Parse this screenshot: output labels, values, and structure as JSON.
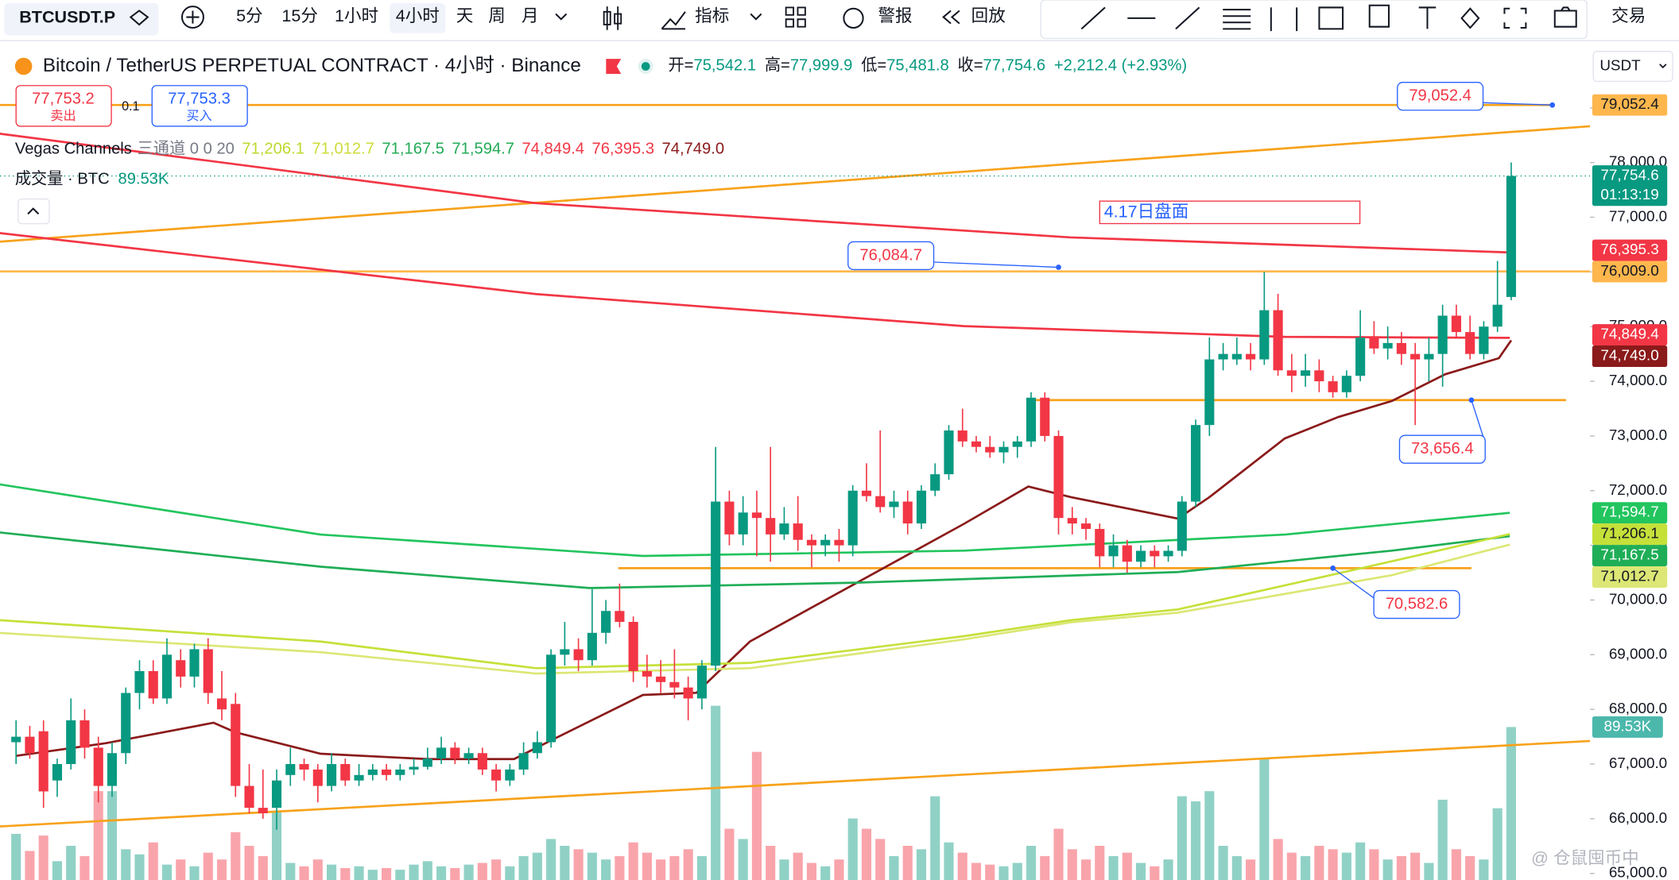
{
  "toolbar": {
    "symbol": "BTCUSDT.P",
    "intervals": [
      "5分",
      "15分",
      "1小时",
      "4小时",
      "天",
      "周",
      "月"
    ],
    "indicators": "指标",
    "alert": "警报",
    "replay": "回放",
    "trade": "交易"
  },
  "header": {
    "title": "Bitcoin / TetherUS PERPETUAL CONTRACT · 4小时 · Binance",
    "ohlc": [
      {
        "label": "开=",
        "value": "75,542.1"
      },
      {
        "label": "高=",
        "value": "77,999.9"
      },
      {
        "label": "低=",
        "value": "75,481.8"
      },
      {
        "label": "收=",
        "value": "77,754.6"
      }
    ],
    "change": "+2,212.4 (+2.93%)"
  },
  "order": {
    "sell_price": "77,753.2",
    "sell_label": "卖出",
    "spread": "0.1",
    "buy_price": "77,753.3",
    "buy_label": "买入"
  },
  "indicator": {
    "name": "Vegas Channels",
    "params": "三通道 0 0 20",
    "values": [
      {
        "text": "71,206.1",
        "color": "#c0d82e"
      },
      {
        "text": "71,012.7",
        "color": "#cddc39"
      },
      {
        "text": "71,167.5",
        "color": "#22ab56"
      },
      {
        "text": "71,594.7",
        "color": "#22ab56"
      },
      {
        "text": "74,849.4",
        "color": "#f23645"
      },
      {
        "text": "76,395.3",
        "color": "#f23645"
      },
      {
        "text": "74,749.0",
        "color": "#8b1a1a"
      }
    ]
  },
  "volume_legend": {
    "name": "成交量 · BTC",
    "value": "89.53K"
  },
  "currency": "USDT",
  "annotation": "4.17日盘面",
  "watermark": "@ 仓鼠囤币中",
  "chart_data": {
    "type": "candlestick",
    "up_color": "#089981",
    "down_color": "#f23645",
    "grid": false,
    "ylim": [
      64880,
      80190
    ],
    "yticks": [
      {
        "value": 65000,
        "label": "65,000.0"
      },
      {
        "value": 66000,
        "label": "66,000.0"
      },
      {
        "value": 67000,
        "label": "67,000.0"
      },
      {
        "value": 68000,
        "label": "68,000.0"
      },
      {
        "value": 69000,
        "label": "69,000.0"
      },
      {
        "value": 70000,
        "label": "70,000.0"
      },
      {
        "value": 71000,
        "label": "71,000.0"
      },
      {
        "value": 72000,
        "label": "72,000.0"
      },
      {
        "value": 73000,
        "label": "73,000.0"
      },
      {
        "value": 74000,
        "label": "74,000.0"
      },
      {
        "value": 75000,
        "label": "75,000.0"
      },
      {
        "value": 76000,
        "label": "76,000.0"
      },
      {
        "value": 77000,
        "label": "77,000.0"
      },
      {
        "value": 78000,
        "label": "78,000.0"
      },
      {
        "value": 79000,
        "label": "79,000.0"
      }
    ],
    "y2lim": [
      0,
      490
    ],
    "candles": [
      [
        67400,
        67800,
        67000,
        67500
      ],
      [
        67500,
        67700,
        67100,
        67200
      ],
      [
        67600,
        67800,
        66200,
        66500
      ],
      [
        66700,
        67100,
        66400,
        67000
      ],
      [
        67000,
        68200,
        66900,
        67800
      ],
      [
        67800,
        68000,
        67100,
        67300
      ],
      [
        67300,
        67500,
        66300,
        66600
      ],
      [
        66600,
        67400,
        66400,
        67200
      ],
      [
        67200,
        68400,
        67000,
        68300
      ],
      [
        68300,
        68900,
        68000,
        68700
      ],
      [
        68700,
        68900,
        68100,
        68200
      ],
      [
        68200,
        69300,
        68100,
        69000
      ],
      [
        68900,
        69100,
        68400,
        68600
      ],
      [
        68600,
        69200,
        68400,
        69100
      ],
      [
        69100,
        69300,
        68100,
        68300
      ],
      [
        68200,
        68700,
        67800,
        68000
      ],
      [
        68100,
        68300,
        66400,
        66600
      ],
      [
        66600,
        67000,
        66100,
        66200
      ],
      [
        66200,
        66900,
        66000,
        66100
      ],
      [
        66200,
        66900,
        65800,
        66700
      ],
      [
        66800,
        67300,
        66600,
        67000
      ],
      [
        67000,
        67100,
        66700,
        66900
      ],
      [
        66900,
        67000,
        66300,
        66600
      ],
      [
        66600,
        67200,
        66500,
        67000
      ],
      [
        67000,
        67100,
        66600,
        66700
      ],
      [
        66700,
        67000,
        66600,
        66800
      ],
      [
        66800,
        67000,
        66700,
        66900
      ],
      [
        66900,
        67000,
        66700,
        66800
      ],
      [
        66800,
        67000,
        66700,
        66900
      ],
      [
        66900,
        67100,
        66800,
        66950
      ],
      [
        66950,
        67300,
        66900,
        67100
      ],
      [
        67100,
        67500,
        67000,
        67300
      ],
      [
        67300,
        67400,
        67000,
        67100
      ],
      [
        67100,
        67300,
        67000,
        67200
      ],
      [
        67200,
        67300,
        66800,
        66900
      ],
      [
        66900,
        67000,
        66500,
        66700
      ],
      [
        66700,
        67000,
        66600,
        66900
      ],
      [
        66900,
        67400,
        66800,
        67200
      ],
      [
        67200,
        67600,
        67100,
        67400
      ],
      [
        67400,
        69100,
        67300,
        69000
      ],
      [
        69000,
        69600,
        68800,
        69100
      ],
      [
        69100,
        69300,
        68700,
        68900
      ],
      [
        68900,
        70200,
        68800,
        69400
      ],
      [
        69400,
        70000,
        69200,
        69800
      ],
      [
        69800,
        70300,
        69500,
        69600
      ],
      [
        69600,
        69700,
        68500,
        68700
      ],
      [
        68700,
        69000,
        68400,
        68600
      ],
      [
        68600,
        68900,
        68300,
        68500
      ],
      [
        68500,
        69100,
        68200,
        68400
      ],
      [
        68400,
        68600,
        67800,
        68200
      ],
      [
        68200,
        68900,
        68000,
        68800
      ],
      [
        68800,
        72800,
        68700,
        71800
      ],
      [
        71800,
        72000,
        71000,
        71200
      ],
      [
        71200,
        71900,
        71000,
        71600
      ],
      [
        71600,
        72000,
        70800,
        71500
      ],
      [
        71500,
        72800,
        70700,
        71200
      ],
      [
        71200,
        71700,
        71100,
        71400
      ],
      [
        71400,
        71900,
        70900,
        71100
      ],
      [
        71100,
        71200,
        70600,
        71000
      ],
      [
        71000,
        71200,
        70800,
        71100
      ],
      [
        71100,
        71300,
        70700,
        71000
      ],
      [
        71000,
        72100,
        70800,
        72000
      ],
      [
        72000,
        72500,
        71800,
        71900
      ],
      [
        71900,
        73100,
        71600,
        71700
      ],
      [
        71700,
        72000,
        71500,
        71800
      ],
      [
        71800,
        72000,
        71200,
        71400
      ],
      [
        71400,
        72100,
        71300,
        72000
      ],
      [
        72000,
        72500,
        71900,
        72300
      ],
      [
        72300,
        73200,
        72200,
        73100
      ],
      [
        73100,
        73500,
        72800,
        72900
      ],
      [
        72900,
        73000,
        72700,
        72800
      ],
      [
        72800,
        73000,
        72600,
        72700
      ],
      [
        72700,
        72900,
        72500,
        72800
      ],
      [
        72800,
        73000,
        72600,
        72900
      ],
      [
        72900,
        73800,
        72800,
        73700
      ],
      [
        73700,
        73800,
        72900,
        73000
      ],
      [
        73000,
        73100,
        71200,
        71500
      ],
      [
        71500,
        71700,
        71200,
        71400
      ],
      [
        71400,
        71500,
        71100,
        71300
      ],
      [
        71300,
        71400,
        70600,
        70800
      ],
      [
        70800,
        71200,
        70600,
        71000
      ],
      [
        71000,
        71100,
        70500,
        70700
      ],
      [
        70700,
        71000,
        70600,
        70900
      ],
      [
        70900,
        71000,
        70600,
        70800
      ],
      [
        70800,
        71000,
        70700,
        70900
      ],
      [
        70900,
        71900,
        70800,
        71800
      ],
      [
        71800,
        73300,
        71700,
        73200
      ],
      [
        73200,
        74800,
        73000,
        74400
      ],
      [
        74400,
        74700,
        74200,
        74500
      ],
      [
        74400,
        74800,
        74300,
        74500
      ],
      [
        74500,
        74700,
        74200,
        74400
      ],
      [
        74400,
        76000,
        74300,
        75300
      ],
      [
        75300,
        75600,
        74100,
        74200
      ],
      [
        74200,
        74500,
        73800,
        74100
      ],
      [
        74100,
        74500,
        73900,
        74200
      ],
      [
        74200,
        74400,
        73800,
        74000
      ],
      [
        74000,
        74100,
        73700,
        73800
      ],
      [
        73800,
        74200,
        73700,
        74100
      ],
      [
        74100,
        75300,
        74000,
        74800
      ],
      [
        74800,
        75100,
        74500,
        74600
      ],
      [
        74600,
        75000,
        74400,
        74700
      ],
      [
        74700,
        74900,
        74300,
        74500
      ],
      [
        74500,
        74700,
        73200,
        74400
      ],
      [
        74400,
        74800,
        74000,
        74500
      ],
      [
        74500,
        75400,
        73900,
        75200
      ],
      [
        75200,
        75400,
        74800,
        74900
      ],
      [
        74900,
        75200,
        74400,
        74500
      ],
      [
        74500,
        75100,
        74400,
        75000
      ],
      [
        75000,
        76200,
        74900,
        75400
      ],
      [
        75542.1,
        77999.9,
        75481.8,
        77754.6
      ]
    ],
    "volumes": [
      27,
      17,
      26,
      11,
      20,
      14,
      52,
      52,
      18,
      15,
      22,
      9,
      12,
      8,
      16,
      12,
      28,
      20,
      14,
      40,
      10,
      8,
      12,
      9,
      7,
      8,
      6,
      7,
      6,
      9,
      11,
      8,
      7,
      9,
      10,
      12,
      8,
      14,
      16,
      24,
      20,
      18,
      16,
      12,
      14,
      22,
      16,
      12,
      14,
      18,
      14,
      102,
      30,
      24,
      75,
      20,
      12,
      16,
      10,
      8,
      12,
      36,
      30,
      24,
      14,
      20,
      18,
      49,
      22,
      16,
      10,
      9,
      8,
      10,
      20,
      14,
      30,
      18,
      12,
      20,
      14,
      16,
      10,
      8,
      12,
      49,
      46,
      52,
      20,
      14,
      12,
      71,
      24,
      16,
      14,
      20,
      18,
      16,
      22,
      18,
      12,
      14,
      16,
      10,
      47,
      18,
      14,
      12,
      42,
      89.53
    ],
    "lines": [
      {
        "color": "#f23645",
        "x": [
          -1.2,
          37.9,
          76.9,
          108.7
        ],
        "values": [
          78528,
          77257,
          76631,
          76358
        ]
      },
      {
        "color": "#f23645",
        "x": [
          -1.2,
          37.9,
          69.1,
          92.5,
          108.9
        ],
        "values": [
          76710,
          75595,
          75009,
          74813,
          74794
        ]
      },
      {
        "color": "#8b1a1a",
        "x": [
          0,
          6.6,
          14.4,
          16,
          22.2,
          30,
          36.3,
          39.4,
          45.7,
          49.6,
          53.5,
          61.3,
          69.1,
          73.8,
          76.9,
          80.8,
          84.7,
          87,
          92.5,
          96.4,
          100.3,
          104.2,
          108.1,
          109
        ],
        "values": [
          67150,
          67384,
          67756,
          67580,
          67189,
          67091,
          67091,
          67482,
          68264,
          68303,
          69241,
          70317,
          71392,
          72076,
          71881,
          71685,
          71490,
          71881,
          72956,
          73347,
          73640,
          74129,
          74422,
          74749
        ]
      },
      {
        "color": "#22c55e",
        "x": [
          -1.2,
          22.2,
          45.7,
          69.1,
          92.5,
          108.9
        ],
        "values": [
          72115,
          71197,
          70806,
          70903,
          71197,
          71595
        ]
      },
      {
        "color": "#1fae57",
        "x": [
          -1.2,
          22.2,
          41.8,
          61.3,
          84.7,
          100.3,
          108.9
        ],
        "values": [
          71236,
          70610,
          70219,
          70317,
          70512,
          70903,
          71168
        ]
      },
      {
        "color": "#c6e03a",
        "x": [
          -1.2,
          22.2,
          37.9,
          53.5,
          69.1,
          76.9,
          84.7,
          100.3,
          108.9
        ],
        "values": [
          69632,
          69241,
          68753,
          68850,
          69339,
          69632,
          69828,
          70708,
          71206
        ]
      },
      {
        "color": "#dce775",
        "x": [
          -1.2,
          22.2,
          37.9,
          53.5,
          69.1,
          76.9,
          84.7,
          100.3,
          108.9
        ],
        "values": [
          69398,
          69046,
          68655,
          68753,
          69280,
          69593,
          69769,
          70454,
          71013
        ]
      }
    ],
    "drawings": [
      {
        "color": "#f7a21b",
        "x": [
          -1.2,
          112
        ],
        "values": [
          79052.4,
          79052.4
        ]
      },
      {
        "color": "#f7a21b",
        "x": [
          -1.2,
          114.8
        ],
        "values": [
          76553,
          78665
        ]
      },
      {
        "color": "#ffb74d",
        "x": [
          -1.2,
          114.8
        ],
        "values": [
          76009.0,
          76009.0
        ]
      },
      {
        "color": "#f7a21b",
        "x": [
          74.2,
          113
        ],
        "values": [
          73656.4,
          73656.4
        ]
      },
      {
        "color": "#f7a21b",
        "x": [
          43.9,
          106.1
        ],
        "values": [
          70582.6,
          70582.6
        ]
      },
      {
        "color": "#f7a21b",
        "x": [
          -1.2,
          114.8
        ],
        "values": [
          65859,
          67423
        ]
      }
    ],
    "callouts": [
      {
        "x": 112,
        "value": 79052.4,
        "label": "79,052.4"
      },
      {
        "x": 76,
        "value": 76084.7,
        "label": "76,084.7"
      },
      {
        "x": 106.1,
        "value": 73656.4,
        "label": "73,656.4"
      },
      {
        "x": 96,
        "value": 70582.6,
        "label": "70,582.6"
      }
    ],
    "price_tags": [
      {
        "value": 79052.4,
        "label": "79,052.4",
        "color": "#ffb74d",
        "label_color": "#131722"
      },
      {
        "value": 77754.6,
        "label": "77,754.6",
        "color": "#089981",
        "label_color": "#ffffff",
        "countdown": "01:13:19"
      },
      {
        "value": 76395.3,
        "label": "76,395.3",
        "color": "#f23645",
        "label_color": "#ffffff"
      },
      {
        "value": 76009.0,
        "label": "76,009.0",
        "color": "#ffb74d",
        "label_color": "#131722"
      },
      {
        "value": 74849.4,
        "label": "74,849.4",
        "color": "#f23645",
        "label_color": "#ffffff"
      },
      {
        "value": 74749.0,
        "label": "74,749.0",
        "color": "#8b1a1a",
        "label_color": "#ffffff"
      },
      {
        "value": 71594.7,
        "label": "71,594.7",
        "color": "#22c55e",
        "label_color": "#ffffff"
      },
      {
        "value": 71206.1,
        "label": "71,206.1",
        "color": "#c6e03a",
        "label_color": "#131722"
      },
      {
        "value": 71167.5,
        "label": "71,167.5",
        "color": "#1fae57",
        "label_color": "#ffffff"
      },
      {
        "value": 71012.7,
        "label": "71,012.7",
        "color": "#dce775",
        "label_color": "#131722"
      }
    ],
    "volume_tag": {
      "value": 89.53,
      "label": "89.53K",
      "color": "#4cb8ac",
      "label_color": "#ffffff"
    }
  }
}
